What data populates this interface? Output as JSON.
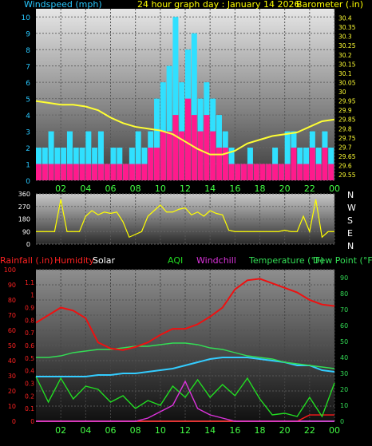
{
  "header": {
    "windspeed_label": "Windspeed (mph)",
    "title": "24 hour graph day : January 14 2026",
    "barometer_label": "Barometer (.in)"
  },
  "legend": {
    "rainfall": "Rainfall (.in)",
    "humidity": "Humidity",
    "solar": "Solar",
    "aqi": "AQI",
    "windchill": "Windchill",
    "temperature": "Temperature (°F)",
    "dewpoint": "Dew Point (°F)"
  },
  "colors": {
    "windspeed_text": "#28c8ff",
    "gust": "#30e0ff",
    "wind_avg": "#ff1a8c",
    "barometer": "#ffff33",
    "direction": "#ffff00",
    "rain": "#ff1a1a",
    "humidity": "#ee1111",
    "solar": "#ffffff",
    "aqi": "#22dd22",
    "windchill": "#dd33dd",
    "temperature": "#33dd55",
    "dewpoint": "#33ccff",
    "tick_green": "#44ff44"
  },
  "chart_data": [
    {
      "type": "bar",
      "name": "wind",
      "title": "24 hour graph day : January 14 2026",
      "x_ticks": [
        "02",
        "04",
        "06",
        "08",
        "10",
        "12",
        "14",
        "16",
        "18",
        "20",
        "22",
        "00"
      ],
      "y_left_ticks": [
        "0",
        "1",
        "2",
        "3",
        "4",
        "5",
        "6",
        "7",
        "8",
        "9",
        "10"
      ],
      "y_right_ticks": [
        "29.55",
        "29.6",
        "29.65",
        "29.7",
        "29.75",
        "29.8",
        "29.85",
        "29.9",
        "29.95",
        "30",
        "30.05",
        "30.1",
        "30.15",
        "30.2",
        "30.25",
        "30.3",
        "30.35",
        "30.4"
      ],
      "ylim": [
        0,
        10.5
      ],
      "barometer_ylim": [
        29.52,
        30.45
      ],
      "wind_x": [
        0,
        0.5,
        1,
        1.5,
        2,
        2.5,
        3,
        3.5,
        4,
        4.5,
        5,
        5.5,
        6,
        6.5,
        7,
        7.5,
        8,
        8.5,
        9,
        9.5,
        10,
        10.5,
        11,
        11.5,
        12,
        12.5,
        13,
        13.5,
        14,
        14.5,
        15,
        15.5,
        16,
        16.5,
        17,
        17.5,
        18,
        18.5,
        19,
        19.5,
        20,
        20.5,
        21,
        21.5,
        22,
        22.5,
        23,
        23.5
      ],
      "gust": [
        2,
        2,
        3,
        2,
        2,
        3,
        2,
        2,
        3,
        2,
        3,
        1,
        2,
        2,
        1,
        2,
        3,
        2,
        3,
        5,
        6,
        7,
        10,
        6,
        8,
        9,
        5,
        6,
        5,
        4,
        3,
        2,
        1,
        1,
        2,
        1,
        1,
        1,
        2,
        1,
        3,
        3,
        2,
        2,
        3,
        2,
        3,
        2
      ],
      "wind_avg": [
        1,
        1,
        1,
        1,
        1,
        1,
        1,
        1,
        1,
        1,
        1,
        1,
        1,
        1,
        1,
        1,
        1,
        1,
        2,
        2,
        3,
        3,
        4,
        3,
        5,
        4,
        3,
        4,
        3,
        2,
        2,
        1,
        1,
        1,
        1,
        1,
        1,
        1,
        1,
        1,
        1,
        2,
        1,
        1,
        2,
        1,
        2,
        1
      ],
      "barometer_x": [
        0,
        1,
        2,
        3,
        4,
        5,
        6,
        7,
        8,
        9,
        10,
        11,
        12,
        13,
        14,
        15,
        16,
        17,
        18,
        19,
        20,
        21,
        22,
        23,
        24
      ],
      "barometer": [
        29.95,
        29.94,
        29.93,
        29.93,
        29.92,
        29.9,
        29.86,
        29.83,
        29.81,
        29.8,
        29.79,
        29.77,
        29.73,
        29.69,
        29.66,
        29.66,
        29.68,
        29.72,
        29.74,
        29.76,
        29.77,
        29.78,
        29.81,
        29.84,
        29.85
      ]
    },
    {
      "type": "scatter",
      "name": "wind_direction",
      "y_ticks": [
        "0",
        "90",
        "180",
        "270",
        "360"
      ],
      "compass": [
        "N",
        "W",
        "S",
        "E",
        "N"
      ],
      "ylim": [
        0,
        360
      ],
      "x": [
        0,
        0.5,
        1,
        1.5,
        2,
        2.5,
        3,
        3.5,
        4,
        4.5,
        5,
        5.5,
        6,
        6.5,
        7,
        7.5,
        8,
        8.5,
        9,
        9.5,
        10,
        10.5,
        11,
        11.5,
        12,
        12.5,
        13,
        13.5,
        14,
        14.5,
        15,
        15.5,
        16,
        16.5,
        17,
        17.5,
        18,
        18.5,
        19,
        19.5,
        20,
        20.5,
        21,
        21.5,
        22,
        22.5,
        23,
        23.5,
        24
      ],
      "y": [
        90,
        90,
        90,
        90,
        320,
        90,
        90,
        90,
        200,
        240,
        210,
        230,
        220,
        230,
        160,
        50,
        70,
        90,
        200,
        240,
        280,
        230,
        230,
        250,
        260,
        210,
        230,
        200,
        240,
        220,
        210,
        100,
        90,
        90,
        90,
        90,
        90,
        90,
        90,
        90,
        100,
        90,
        90,
        200,
        90,
        320,
        50,
        90,
        90
      ]
    },
    {
      "type": "line",
      "name": "temperature",
      "x_ticks": [
        "02",
        "04",
        "06",
        "08",
        "10",
        "12",
        "14",
        "16",
        "18",
        "20",
        "22",
        "00"
      ],
      "y_left_ticks": [
        "0",
        "10",
        "20",
        "30",
        "40",
        "50",
        "60",
        "70",
        "80",
        "90",
        "100"
      ],
      "y_rain_ticks": [
        "0",
        "0.1",
        "0.2",
        "0.3",
        "0.4",
        "0.5",
        "0.6",
        "0.7",
        "0.8",
        "0.9",
        "1",
        "1.1"
      ],
      "y_right_ticks": [
        "0",
        "10",
        "20",
        "30",
        "40",
        "50",
        "60",
        "70",
        "80",
        "90"
      ],
      "ylim": [
        0,
        100
      ],
      "temp_ylim": [
        0,
        95
      ],
      "x": [
        0,
        1,
        2,
        3,
        4,
        5,
        6,
        7,
        8,
        9,
        10,
        11,
        12,
        13,
        14,
        15,
        16,
        17,
        18,
        19,
        20,
        21,
        22,
        23,
        24
      ],
      "series": [
        {
          "name": "Humidity",
          "values": [
            65,
            70,
            75,
            73,
            68,
            52,
            48,
            47,
            49,
            52,
            57,
            61,
            61,
            64,
            69,
            75,
            87,
            93,
            94,
            91,
            88,
            85,
            80,
            77,
            76
          ]
        },
        {
          "name": "Temperature (°F)",
          "values": [
            40,
            40,
            41,
            43,
            44,
            45,
            45,
            46,
            47,
            47,
            48,
            49,
            49,
            48,
            46,
            45,
            43,
            41,
            40,
            39,
            37,
            36,
            35,
            34,
            33
          ]
        },
        {
          "name": "Dew Point (°F)",
          "values": [
            28,
            28,
            28,
            28,
            28,
            29,
            29,
            30,
            30,
            31,
            32,
            33,
            35,
            37,
            39,
            40,
            40,
            40,
            39,
            38,
            37,
            35,
            35,
            32,
            31
          ]
        },
        {
          "name": "AQI",
          "values": [
            28,
            12,
            27,
            14,
            22,
            20,
            12,
            16,
            8,
            13,
            10,
            22,
            15,
            26,
            15,
            23,
            16,
            27,
            14,
            4,
            5,
            3,
            15,
            3,
            24
          ]
        },
        {
          "name": "Windchill",
          "values": [
            0,
            0,
            0,
            0,
            0,
            0,
            0,
            0,
            0,
            2,
            6,
            10,
            25,
            8,
            4,
            2,
            0,
            0,
            0,
            0,
            0,
            0,
            0,
            0,
            0
          ]
        },
        {
          "name": "Rainfall (.in)",
          "values": [
            0,
            0,
            0,
            0,
            0,
            0,
            0,
            0,
            0,
            0,
            0,
            0,
            0,
            0,
            0,
            0,
            0,
            0,
            0,
            0,
            0,
            0,
            0.05,
            0.05,
            0.05
          ]
        },
        {
          "name": "Solar",
          "values": [
            0,
            0,
            0,
            0,
            0,
            0,
            0,
            0,
            0,
            0,
            0,
            0,
            0,
            0,
            0,
            0,
            0,
            0,
            0,
            0,
            0,
            0,
            0,
            0,
            0
          ]
        }
      ]
    }
  ]
}
